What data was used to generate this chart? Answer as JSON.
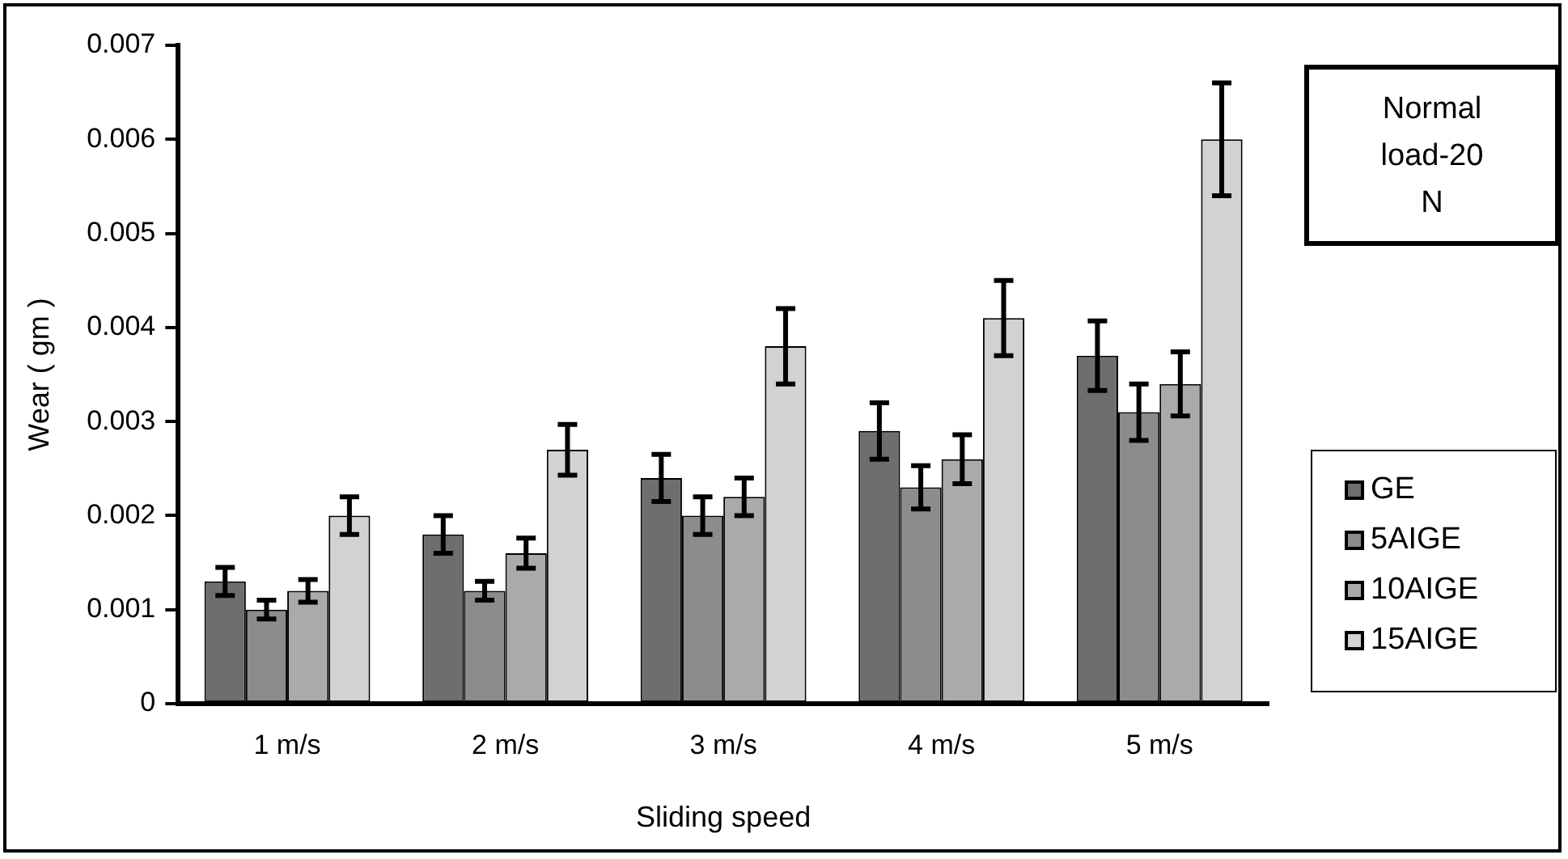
{
  "chart_data": {
    "type": "bar",
    "xlabel": "Sliding speed",
    "ylabel": "Wear ( gm )",
    "categories": [
      "1 m/s",
      "2 m/s",
      "3 m/s",
      "4 m/s",
      "5 m/s"
    ],
    "series": [
      {
        "name": "GE",
        "color": "#6e6e6e",
        "values": [
          0.0013,
          0.0018,
          0.0024,
          0.0029,
          0.0037
        ],
        "errors": [
          0.00015,
          0.0002,
          0.00025,
          0.0003,
          0.00037
        ]
      },
      {
        "name": "5AIGE",
        "color": "#8c8c8c",
        "values": [
          0.001,
          0.0012,
          0.002,
          0.0023,
          0.0031
        ],
        "errors": [
          0.0001,
          0.0001,
          0.0002,
          0.00023,
          0.0003
        ]
      },
      {
        "name": "10AIGE",
        "color": "#aaaaaa",
        "values": [
          0.0012,
          0.0016,
          0.0022,
          0.0026,
          0.0034
        ],
        "errors": [
          0.00012,
          0.00016,
          0.0002,
          0.00026,
          0.00034
        ]
      },
      {
        "name": "15AIGE",
        "color": "#d2d2d2",
        "values": [
          0.002,
          0.0027,
          0.0038,
          0.0041,
          0.006
        ],
        "errors": [
          0.0002,
          0.00027,
          0.0004,
          0.0004,
          0.0006
        ]
      }
    ],
    "ylim": [
      0,
      0.007
    ],
    "yticks": [
      {
        "value": 0,
        "label": "0"
      },
      0.001,
      0.002,
      0.003,
      0.004,
      0.005,
      0.006,
      0.007
    ],
    "annotations": [
      "Normal load-20 N"
    ],
    "legend": "right",
    "grid": false
  }
}
